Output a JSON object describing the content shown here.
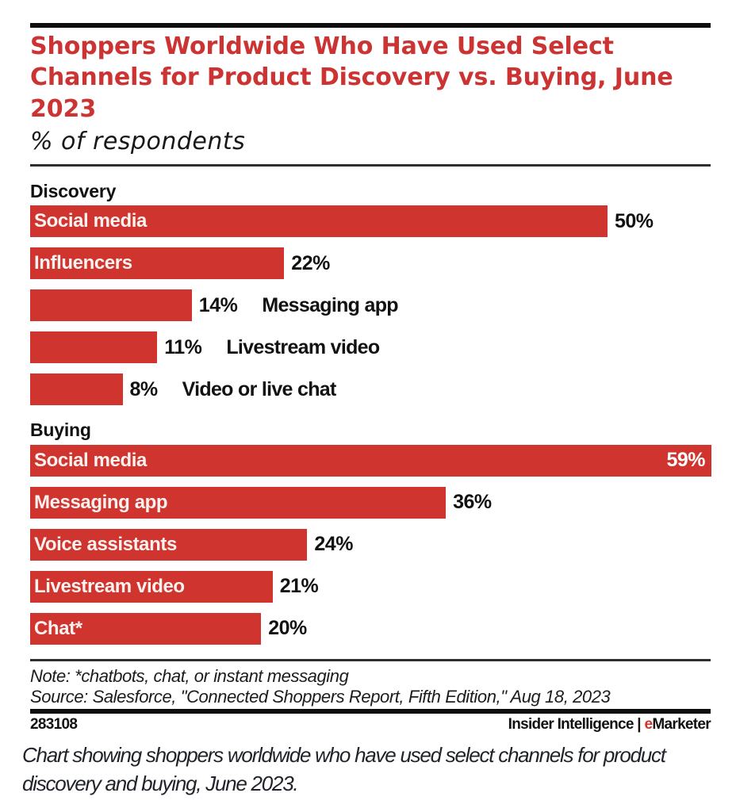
{
  "header": {
    "title_lines": [
      "Shoppers Worldwide Who Have Used Select",
      "Channels for Product Discovery vs. Buying, June",
      "2023"
    ],
    "title": "Shoppers Worldwide Who Have Used Select Channels for Product Discovery vs. Buying, June 2023",
    "subtitle": "% of respondents"
  },
  "chart_data": {
    "type": "bar",
    "orientation": "horizontal",
    "title": "Shoppers Worldwide Who Have Used Select Channels for Product Discovery vs. Buying, June 2023",
    "xlabel": "% of respondents",
    "xlim": [
      0,
      59
    ],
    "value_suffix": "%",
    "bar_color": "#d0342e",
    "groups": [
      {
        "name": "Discovery",
        "bars": [
          {
            "label": "Social media",
            "value": 50,
            "label_inside": true,
            "value_inside": false
          },
          {
            "label": "Influencers",
            "value": 22,
            "label_inside": true,
            "value_inside": false
          },
          {
            "label": "Messaging app",
            "value": 14,
            "label_inside": false,
            "value_inside": false
          },
          {
            "label": "Livestream video",
            "value": 11,
            "label_inside": false,
            "value_inside": false
          },
          {
            "label": "Video or live chat",
            "value": 8,
            "label_inside": false,
            "value_inside": false
          }
        ]
      },
      {
        "name": "Buying",
        "bars": [
          {
            "label": "Social media",
            "value": 59,
            "label_inside": true,
            "value_inside": true
          },
          {
            "label": "Messaging app",
            "value": 36,
            "label_inside": true,
            "value_inside": false
          },
          {
            "label": "Voice assistants",
            "value": 24,
            "label_inside": true,
            "value_inside": false
          },
          {
            "label": "Livestream video",
            "value": 21,
            "label_inside": true,
            "value_inside": false
          },
          {
            "label": "Chat*",
            "value": 20,
            "label_inside": true,
            "value_inside": false
          }
        ]
      }
    ]
  },
  "footnotes": {
    "note": "Note: *chatbots, chat, or instant messaging",
    "source": "Source: Salesforce, \"Connected Shoppers Report, Fifth Edition,\" Aug 18, 2023"
  },
  "footer": {
    "chart_id": "283108",
    "brand_name": "Insider Intelligence",
    "brand_separator": " | ",
    "brand_e": "e",
    "brand_rest": "Marketer"
  },
  "caption": {
    "line1": "Chart showing shoppers worldwide who have used select channels for product",
    "line2": "discovery and buying, June 2023."
  }
}
